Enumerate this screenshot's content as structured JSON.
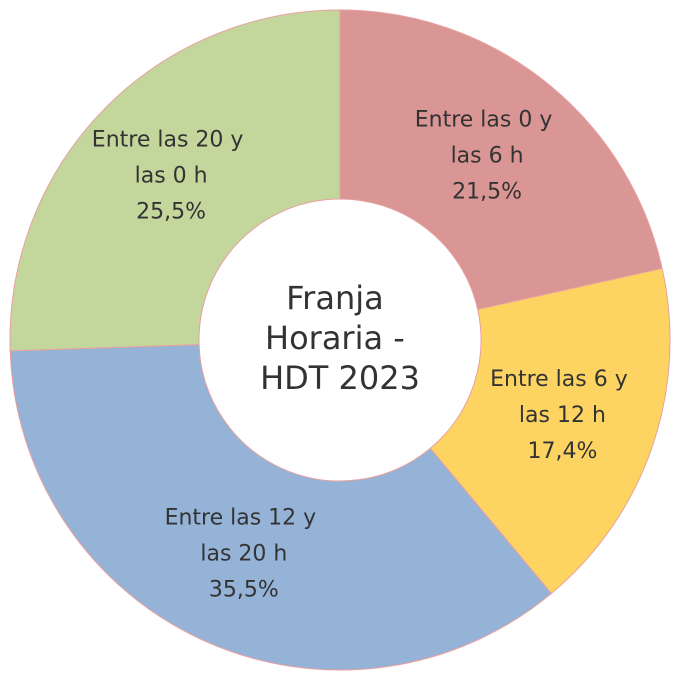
{
  "chart_data": {
    "type": "donut",
    "title": "Franja Horaria - HDT 2023",
    "categories": [
      "Entre las 0 y las 6 h",
      "Entre las 6 y las 12 h",
      "Entre las 12 y las 20 h",
      "Entre las 20 y las 0 h"
    ],
    "values": [
      21.5,
      17.4,
      35.5,
      25.5
    ],
    "value_labels": [
      "21,5%",
      "17,4%",
      "35,5%",
      "25,5%"
    ],
    "colors": [
      "#d99694",
      "#fdd462",
      "#95b3d7",
      "#c3d69b"
    ]
  }
}
